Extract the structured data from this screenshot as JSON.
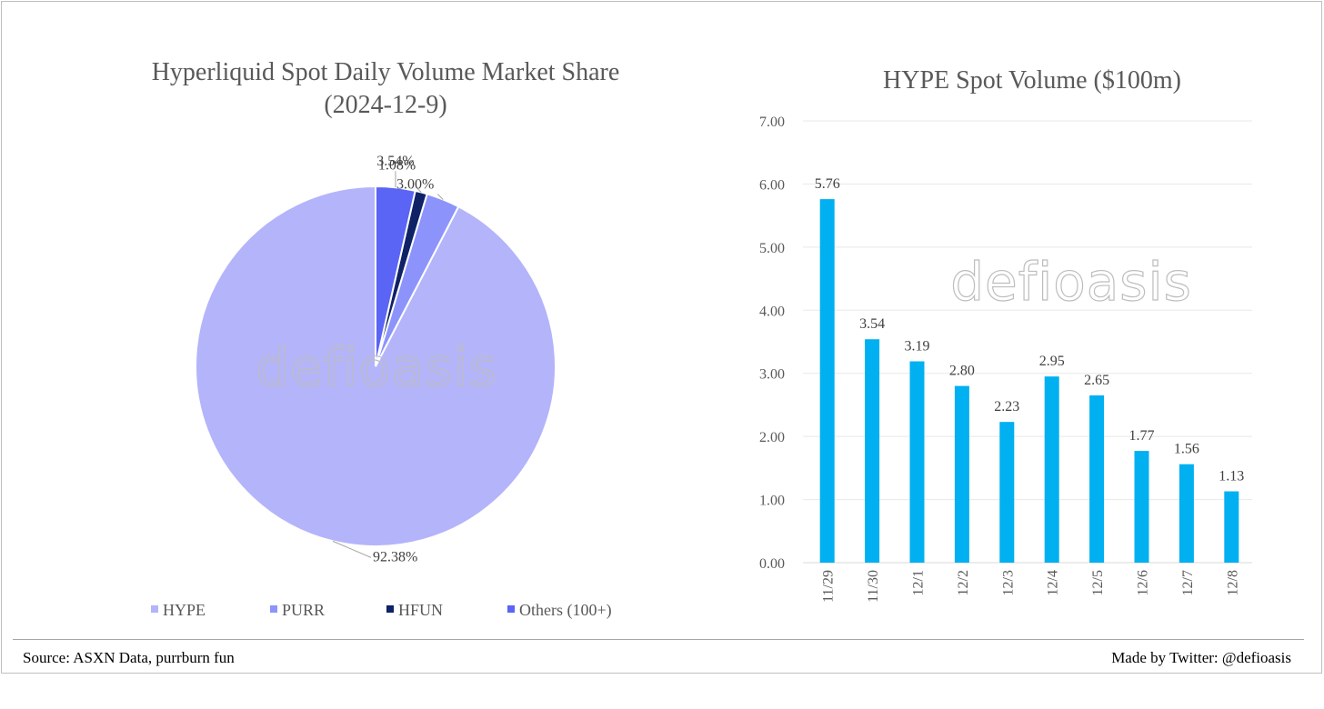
{
  "footer": {
    "source": "Source: ASXN Data, purrburn fun",
    "credit": "Made by Twitter: @defioasis"
  },
  "watermark": "defioasis",
  "chart_data": [
    {
      "type": "pie",
      "title": "Hyperliquid Spot Daily Volume Market Share",
      "subtitle": "(2024-12-9)",
      "slices": [
        {
          "name": "HYPE",
          "value": 92.38,
          "label": "92.38%",
          "color": "#b4b4fb"
        },
        {
          "name": "PURR",
          "value": 3.0,
          "label": "3.00%",
          "color": "#8c94fb"
        },
        {
          "name": "HFUN",
          "value": 1.08,
          "label": "1.08%",
          "color": "#0f2266"
        },
        {
          "name": "Others (100+)",
          "value": 3.54,
          "label": "3.54%",
          "color": "#5a64f5"
        }
      ],
      "legend": [
        "HYPE",
        "PURR",
        "HFUN",
        "Others (100+)"
      ],
      "legend_position": "bottom"
    },
    {
      "type": "bar",
      "title": "HYPE Spot Volume ($100m)",
      "categories": [
        "11/29",
        "11/30",
        "12/1",
        "12/2",
        "12/3",
        "12/4",
        "12/5",
        "12/6",
        "12/7",
        "12/8"
      ],
      "values": [
        5.76,
        3.54,
        3.19,
        2.8,
        2.23,
        2.95,
        2.65,
        1.77,
        1.56,
        1.13
      ],
      "value_labels": [
        "5.76",
        "3.54",
        "3.19",
        "2.80",
        "2.23",
        "2.95",
        "2.65",
        "1.77",
        "1.56",
        "1.13"
      ],
      "yticks": [
        "0.00",
        "1.00",
        "2.00",
        "3.00",
        "4.00",
        "5.00",
        "6.00",
        "7.00"
      ],
      "ylim": [
        0,
        7
      ],
      "grid": true,
      "bar_color": "#00b0f0",
      "legend": null
    }
  ]
}
